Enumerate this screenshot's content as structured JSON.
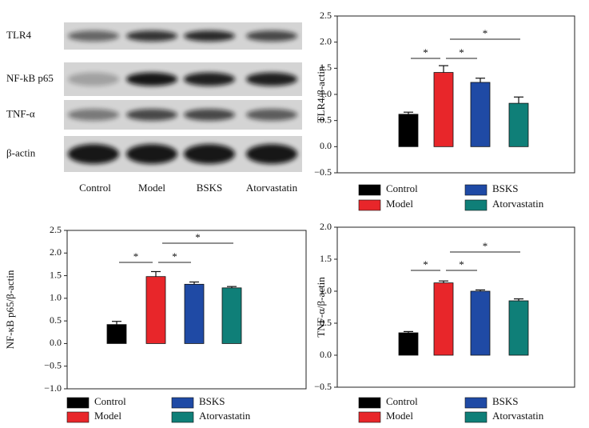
{
  "blot": {
    "rows": [
      "TLR4",
      "NF-kB p65",
      "TNF-α",
      "β-actin"
    ],
    "columns": [
      "Control",
      "Model",
      "BSKS",
      "Atorvastatin"
    ]
  },
  "chart_data": [
    {
      "type": "bar",
      "ylabel": "TLR4/β-actin",
      "categories": [
        "Control",
        "Model",
        "BSKS",
        "Atorvastatin"
      ],
      "colors": [
        "#000000",
        "#e8262a",
        "#1f4aa5",
        "#0f7f78"
      ],
      "values": [
        0.62,
        1.42,
        1.23,
        0.83
      ],
      "errors": [
        0.04,
        0.13,
        0.08,
        0.12
      ],
      "ylim": [
        -0.5,
        2.5
      ],
      "yticks": [
        {
          "value": -0.5,
          "label": "−0.5"
        },
        {
          "value": 0,
          "label": "0.0"
        },
        0.5,
        {
          "value": 1,
          "label": "1.0"
        },
        1.5,
        {
          "value": 2,
          "label": "2.0"
        },
        2.5
      ],
      "annotations": [
        "*",
        "*",
        "*"
      ]
    },
    {
      "type": "bar",
      "ylabel": "NF-κB p65/β-actin",
      "categories": [
        "Control",
        "Model",
        "BSKS",
        "Atorvastatin"
      ],
      "colors": [
        "#000000",
        "#e8262a",
        "#1f4aa5",
        "#0f7f78"
      ],
      "values": [
        0.42,
        1.48,
        1.31,
        1.23
      ],
      "errors": [
        0.07,
        0.11,
        0.05,
        0.03
      ],
      "ylim": [
        -1.0,
        2.5
      ],
      "yticks": [
        {
          "value": -1,
          "label": "−1.0"
        },
        {
          "value": -0.5,
          "label": "−0.5"
        },
        {
          "value": 0,
          "label": "0.0"
        },
        0.5,
        {
          "value": 1,
          "label": "1.0"
        },
        1.5,
        {
          "value": 2,
          "label": "2.0"
        },
        2.5
      ],
      "annotations": [
        "*",
        "*",
        "*"
      ]
    },
    {
      "type": "bar",
      "ylabel": "TNF-α/β-actin",
      "categories": [
        "Control",
        "Model",
        "BSKS",
        "Atorvastatin"
      ],
      "colors": [
        "#000000",
        "#e8262a",
        "#1f4aa5",
        "#0f7f78"
      ],
      "values": [
        0.35,
        1.13,
        1.0,
        0.85
      ],
      "errors": [
        0.02,
        0.03,
        0.02,
        0.03
      ],
      "ylim": [
        -0.5,
        2.0
      ],
      "yticks": [
        {
          "value": -0.5,
          "label": "−0.5"
        },
        {
          "value": 0,
          "label": "0.0"
        },
        0.5,
        {
          "value": 1,
          "label": "1.0"
        },
        1.5,
        {
          "value": 2,
          "label": "2.0"
        }
      ],
      "annotations": [
        "*",
        "*",
        "*"
      ]
    }
  ]
}
